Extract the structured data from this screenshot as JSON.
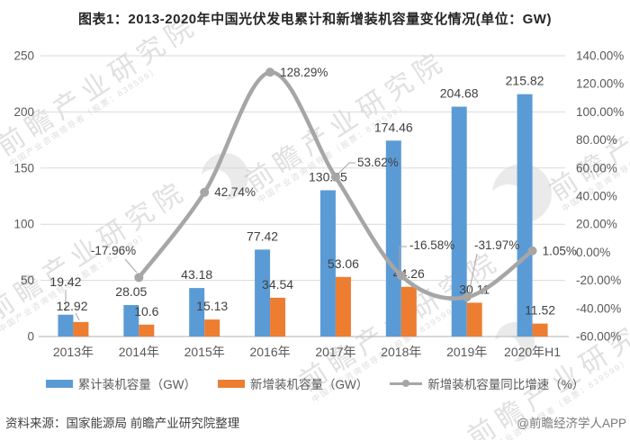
{
  "title": "图表1：2013-2020年中国光伏发电累计和新增装机容量变化情况(单位：GW)",
  "source_note": "资料来源：国家能源局 前瞻产业研究院整理",
  "credit": "@前瞻经济学人APP",
  "watermark": {
    "main": "前瞻产业研究院",
    "sub": "中国产业咨询领导者（股票：839599）"
  },
  "colors": {
    "cumulative": "#5B9BD5",
    "new": "#ED7D31",
    "growth": "#A6A6A6",
    "gridline": "#D9D9D9",
    "axis_line": "#BFBFBF",
    "tick_label": "#595959",
    "data_label": "#404040",
    "leader_line": "#A6A6A6"
  },
  "legend": [
    {
      "label": "累计装机容量（GW）",
      "type": "bar",
      "color_key": "cumulative"
    },
    {
      "label": "新增装机容量（GW）",
      "type": "bar",
      "color_key": "new"
    },
    {
      "label": "新增装机容量同比增速（%）",
      "type": "line",
      "color_key": "growth"
    }
  ],
  "chart_data": {
    "type": "bar+line combo",
    "categories": [
      "2013年",
      "2014年",
      "2015年",
      "2016年",
      "2017年",
      "2018年",
      "2019年",
      "2020年H1"
    ],
    "series": [
      {
        "name": "累计装机容量（GW）",
        "type": "bar",
        "axis": "left",
        "values": [
          19.42,
          28.05,
          43.18,
          77.42,
          130.25,
          174.46,
          204.68,
          215.82
        ]
      },
      {
        "name": "新增装机容量（GW）",
        "type": "bar",
        "axis": "left",
        "values": [
          12.92,
          10.6,
          15.13,
          34.54,
          53.06,
          44.26,
          30.11,
          11.52
        ]
      },
      {
        "name": "新增装机容量同比增速（%）",
        "type": "line",
        "axis": "right",
        "values": [
          null,
          -17.96,
          42.74,
          128.29,
          53.62,
          -16.58,
          -31.97,
          1.05
        ]
      }
    ],
    "line_labels": [
      "",
      "-17.96%",
      "42.74%",
      "128.29%",
      "53.62%",
      "-16.58%",
      "-31.97%",
      "1.05%"
    ],
    "left_axis": {
      "min": 0,
      "max": 250,
      "step": 50,
      "ticks": [
        "0",
        "50",
        "100",
        "150",
        "200",
        "250"
      ]
    },
    "right_axis": {
      "min": -60,
      "max": 140,
      "step": 20,
      "ticks": [
        "-60.00%",
        "-40.00%",
        "-20.00%",
        "0.00%",
        "20.00%",
        "40.00%",
        "60.00%",
        "80.00%",
        "100.00%",
        "120.00%",
        "140.00%"
      ]
    },
    "grid": "horizontal gridlines at left-axis ticks",
    "legend_position": "bottom"
  }
}
